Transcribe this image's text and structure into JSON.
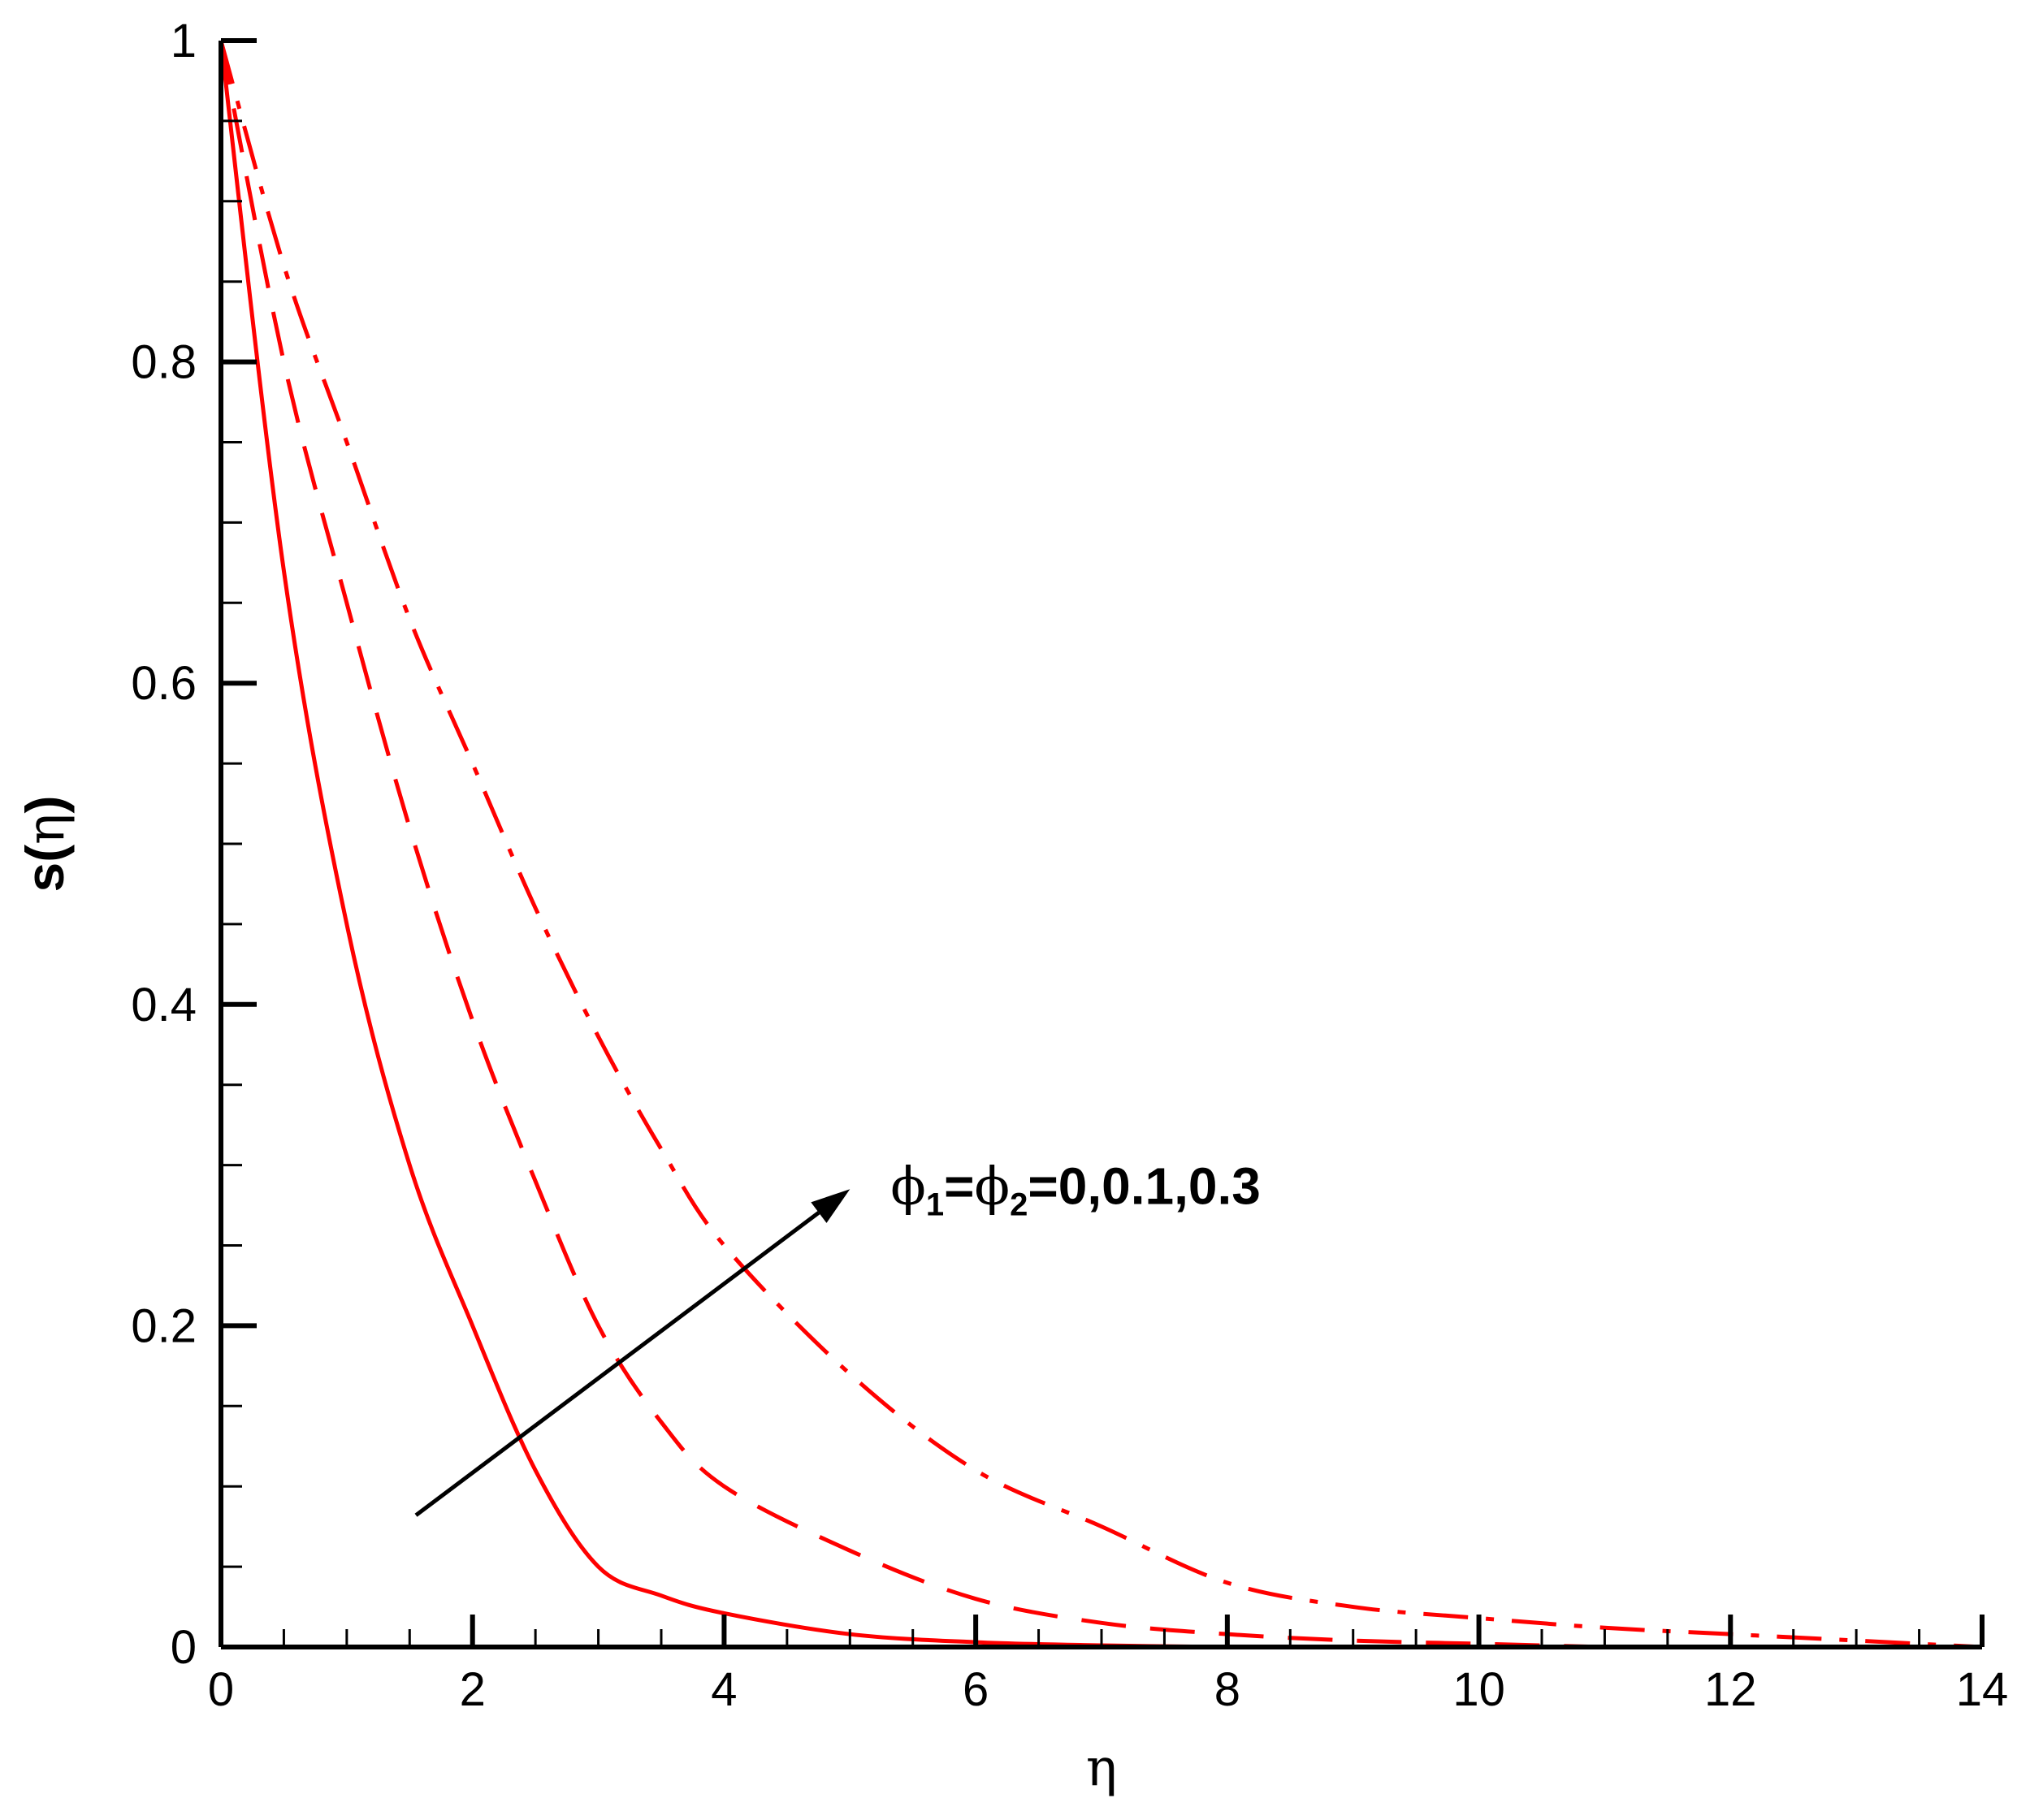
{
  "chart_data": {
    "type": "line",
    "title": "",
    "xlabel": "η",
    "ylabel_main": "s",
    "ylabel_paren_open": "(",
    "ylabel_symbol": "η",
    "ylabel_paren_close": ")",
    "xlim": [
      0,
      14
    ],
    "ylim": [
      0,
      1
    ],
    "x_ticks": [
      0,
      2,
      4,
      6,
      8,
      10,
      12,
      14
    ],
    "x_tick_labels": [
      "0",
      "2",
      "4",
      "6",
      "8",
      "10",
      "12",
      "14"
    ],
    "y_ticks": [
      0,
      0.2,
      0.4,
      0.6,
      0.8,
      1
    ],
    "y_tick_labels": [
      "0",
      "0.2",
      "0.4",
      "0.6",
      "0.8",
      "1"
    ],
    "grid": false,
    "line_color": "#ff0000",
    "series": [
      {
        "style": "solid",
        "x": [
          0,
          0.5,
          1,
          1.5,
          2,
          2.5,
          3,
          3.5,
          4,
          5,
          6,
          7,
          8
        ],
        "y": [
          1,
          0.67,
          0.45,
          0.3,
          0.2,
          0.11,
          0.05,
          0.032,
          0.021,
          0.008,
          0.003,
          0.001,
          0
        ]
      },
      {
        "style": "dashed",
        "x": [
          0,
          0.5,
          1,
          1.5,
          2,
          2.5,
          3,
          3.5,
          4,
          5,
          6,
          7,
          8,
          9,
          10,
          11
        ],
        "y": [
          1,
          0.8,
          0.65,
          0.51,
          0.39,
          0.29,
          0.2,
          0.14,
          0.1,
          0.06,
          0.03,
          0.015,
          0.008,
          0.004,
          0.002,
          0
        ]
      },
      {
        "style": "dashdot",
        "x": [
          0,
          0.5,
          1,
          1.5,
          2,
          2.5,
          3,
          3.5,
          4,
          5,
          6,
          7,
          8,
          9,
          10,
          11,
          12,
          13,
          14
        ],
        "y": [
          1,
          0.86,
          0.75,
          0.64,
          0.55,
          0.46,
          0.38,
          0.31,
          0.25,
          0.17,
          0.11,
          0.075,
          0.04,
          0.025,
          0.018,
          0.012,
          0.008,
          0.004,
          0
        ]
      }
    ],
    "annotation": {
      "phi_symbol": "ϕ",
      "sub1": "1",
      "equals": "=",
      "sub2": "2",
      "values": "=0,0.1,0.3",
      "arrow_from": [
        1.55,
        0.082
      ],
      "arrow_to": [
        5,
        0.285
      ]
    }
  }
}
